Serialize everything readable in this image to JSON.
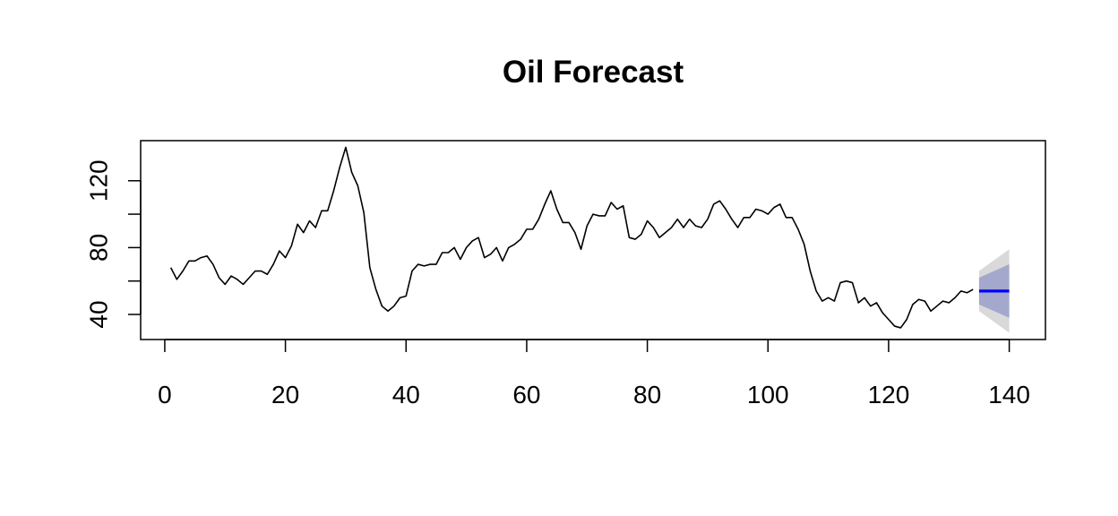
{
  "chart_data": {
    "type": "line",
    "title": "Oil Forecast",
    "xlabel": "",
    "ylabel": "",
    "xlim": [
      -4,
      146
    ],
    "ylim": [
      25,
      144
    ],
    "x_ticks": [
      0,
      20,
      40,
      60,
      80,
      100,
      120,
      140
    ],
    "y_ticks": [
      40,
      60,
      80,
      100,
      120
    ],
    "y_tick_labels": [
      {
        "value": 40,
        "label": "40"
      },
      {
        "value": 80,
        "label": "80"
      },
      {
        "value": 120,
        "label": "120"
      }
    ],
    "grid": false,
    "legend": "none",
    "colors": {
      "series": "#000000",
      "forecast": "#0000ff",
      "band_80": "#a3a8cc",
      "band_95": "#d9d9d9",
      "axis": "#000000"
    },
    "series": [
      {
        "x": [
          1,
          2,
          3,
          4,
          5,
          6,
          7,
          8,
          9,
          10,
          11,
          12,
          13,
          14,
          15,
          16,
          17,
          18,
          19,
          20,
          21,
          22,
          23,
          24,
          25,
          26,
          27,
          28,
          29,
          30,
          31,
          32,
          33,
          34,
          35,
          36,
          37,
          38,
          39,
          40,
          41,
          42,
          43,
          44,
          45,
          46,
          47,
          48,
          49,
          50,
          51,
          52,
          53,
          54,
          55,
          56,
          57,
          58,
          59,
          60,
          61,
          62,
          63,
          64,
          65,
          66,
          67,
          68,
          69,
          70,
          71,
          72,
          73,
          74,
          75,
          76,
          77,
          78,
          79,
          80,
          81,
          82,
          83,
          84,
          85,
          86,
          87,
          88,
          89,
          90,
          91,
          92,
          93,
          94,
          95,
          96,
          97,
          98,
          99,
          100,
          101,
          102,
          103,
          104,
          105,
          106,
          107,
          108,
          109,
          110,
          111,
          112,
          113,
          114,
          115,
          116,
          117,
          118,
          119,
          120,
          121,
          122,
          123,
          124,
          125,
          126,
          127,
          128,
          129,
          130,
          131,
          132,
          133,
          134
        ],
        "values": [
          68,
          61,
          66,
          72,
          72,
          74,
          75,
          70,
          62,
          58,
          63,
          61,
          58,
          62,
          66,
          66,
          64,
          70,
          78,
          74,
          81,
          94,
          89,
          96,
          92,
          102,
          102,
          114,
          128,
          140,
          125,
          117,
          101,
          68,
          55,
          45,
          42,
          45,
          50,
          51,
          66,
          70,
          69,
          70,
          70,
          77,
          77,
          80,
          73,
          80,
          84,
          86,
          74,
          76,
          80,
          72,
          80,
          82,
          85,
          91,
          91,
          97,
          106,
          114,
          103,
          95,
          95,
          89,
          79,
          93,
          100,
          99,
          99,
          107,
          103,
          105,
          86,
          85,
          88,
          96,
          92,
          86,
          89,
          92,
          97,
          92,
          97,
          93,
          92,
          97,
          106,
          108,
          103,
          97,
          92,
          98,
          98,
          103,
          102,
          100,
          104,
          106,
          98,
          98,
          91,
          82,
          66,
          54,
          48,
          50,
          48,
          59,
          60,
          59,
          47,
          50,
          45,
          47,
          41,
          37,
          33,
          32,
          37,
          46,
          49,
          48,
          42,
          45,
          48,
          47,
          50,
          54,
          53,
          55
        ]
      }
    ],
    "forecast": {
      "x": [
        135,
        140
      ],
      "mean": [
        54,
        54
      ],
      "lower_80": [
        46,
        38
      ],
      "upper_80": [
        62,
        70
      ],
      "lower_95": [
        42,
        29
      ],
      "upper_95": [
        66,
        79
      ]
    }
  }
}
